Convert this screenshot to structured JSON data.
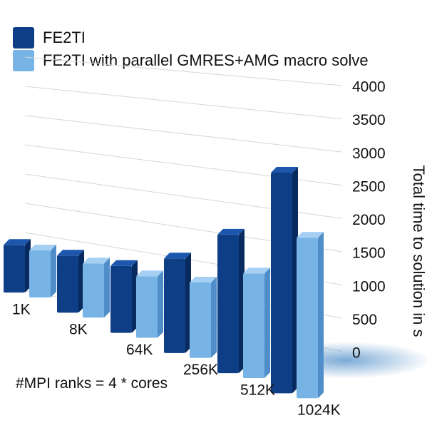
{
  "colors": {
    "series1_front": "#0e3f86",
    "series1_side": "#082a5e",
    "series1_top": "#1d57ad",
    "series2_front": "#78b3e6",
    "series2_side": "#4f8ec8",
    "series2_top": "#a6d0f3",
    "grid": "#d6d6d6",
    "floor": "#4f8ec8"
  },
  "legend": [
    {
      "label": "FE2TI",
      "color": "#0e3f86"
    },
    {
      "label": "FE2TI with parallel GMRES+AMG macro solve",
      "color": "#78b3e6"
    }
  ],
  "note": "#MPI ranks = 4 * cores",
  "chart_data": {
    "type": "bar",
    "style": "3d",
    "categories": [
      "1K",
      "8K",
      "64K",
      "256K",
      "512K",
      "1024K"
    ],
    "series": [
      {
        "name": "FE2TI",
        "values": [
          820,
          960,
          1100,
          1520,
          2180,
          3400
        ]
      },
      {
        "name": "FE2TI with parallel GMRES+AMG macro solve",
        "values": [
          800,
          900,
          1000,
          1200,
          1630,
          2450
        ]
      }
    ],
    "ylabel": "Total time to solution in s",
    "ylim": [
      0,
      4000
    ],
    "yticks": [
      0,
      500,
      1000,
      1500,
      2000,
      2500,
      3000,
      3500,
      4000
    ],
    "grid": true,
    "legend_position": "top-left"
  }
}
